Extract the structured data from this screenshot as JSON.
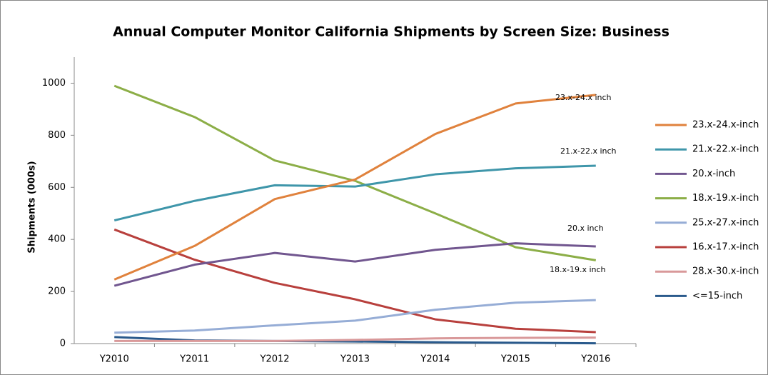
{
  "chart_data": {
    "type": "line",
    "title": "Annual Computer Monitor California Shipments by Screen Size: Business",
    "y_label": "Shipments (000s)",
    "categories": [
      "Y2010",
      "Y2011",
      "Y2012",
      "Y2013",
      "Y2014",
      "Y2015",
      "Y2016"
    ],
    "ylim": [
      0,
      1100
    ],
    "yticks": [
      0,
      200,
      400,
      600,
      800,
      1000
    ],
    "grid": false,
    "legend": "right",
    "series": [
      {
        "name": "23.x-24.x-inch",
        "color": "#E0823D",
        "values": [
          246,
          375,
          555,
          630,
          805,
          922,
          955
        ]
      },
      {
        "name": "21.x-22.x-inch",
        "color": "#3F96AA",
        "values": [
          473,
          548,
          608,
          603,
          650,
          673,
          683
        ]
      },
      {
        "name": "20.x-inch",
        "color": "#71568F",
        "values": [
          222,
          303,
          348,
          315,
          360,
          385,
          373
        ]
      },
      {
        "name": "18.x-19.x-inch",
        "color": "#8CAE47",
        "values": [
          990,
          870,
          703,
          625,
          500,
          370,
          320
        ]
      },
      {
        "name": "25.x-27.x-inch",
        "color": "#96ADD6",
        "values": [
          42,
          50,
          70,
          88,
          130,
          157,
          167
        ]
      },
      {
        "name": "16.x-17.x-inch",
        "color": "#B8403D",
        "values": [
          438,
          322,
          233,
          170,
          93,
          57,
          44
        ]
      },
      {
        "name": "28.x-30.x-inch",
        "color": "#D9999A",
        "values": [
          10,
          10,
          10,
          14,
          20,
          22,
          23
        ]
      },
      {
        "name": "<=15-inch",
        "color": "#2A5A8C",
        "values": [
          25,
          12,
          10,
          8,
          5,
          3,
          1
        ]
      }
    ],
    "annotations": [
      "23.x-24.x inch",
      "21.x-22.x inch",
      "20.x inch",
      "18.x-19.x inch"
    ]
  }
}
